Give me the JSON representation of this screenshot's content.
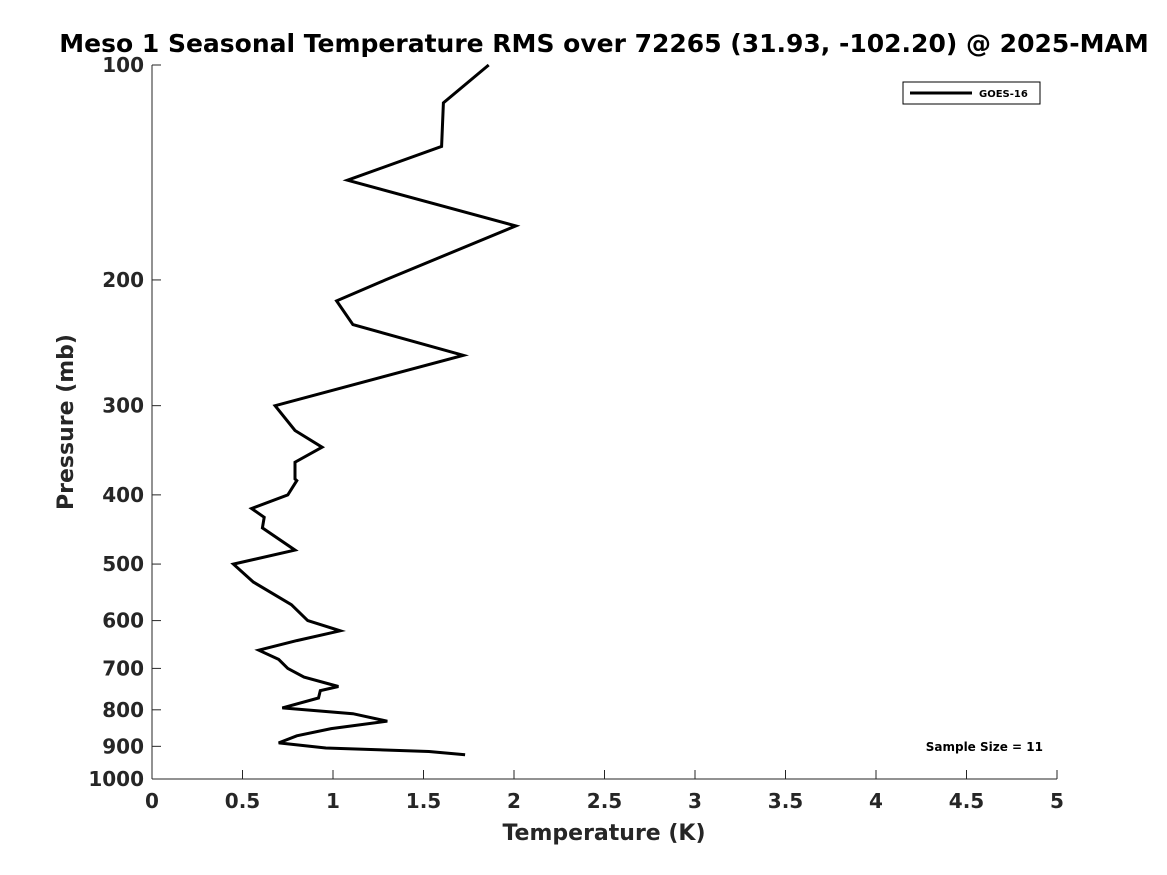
{
  "chart_data": {
    "type": "line",
    "title": "Meso 1 Seasonal Temperature RMS over 72265 (31.93, -102.20) @ 2025-MAM",
    "xlabel": "Temperature (K)",
    "ylabel": "Pressure (mb)",
    "xlim": [
      0,
      5
    ],
    "ylim": [
      100,
      1000
    ],
    "y_scale": "log",
    "y_reversed": true,
    "x_ticks": [
      "0",
      "0.5",
      "1",
      "1.5",
      "2",
      "2.5",
      "3",
      "3.5",
      "4",
      "4.5",
      "5"
    ],
    "y_ticks": [
      "100",
      "200",
      "300",
      "400",
      "500",
      "600",
      "700",
      "800",
      "900",
      "1000"
    ],
    "grid": false,
    "legend_placement": "top-right",
    "annotation": "Sample Size = 11",
    "series": [
      {
        "name": "GOES-16",
        "color": "#000000",
        "x": [
          1.86,
          1.61,
          1.6,
          1.08,
          2.01,
          1.29,
          1.02,
          1.11,
          1.72,
          0.68,
          0.79,
          0.94,
          0.79,
          0.79,
          0.8,
          0.75,
          0.55,
          0.62,
          0.61,
          0.79,
          0.45,
          0.56,
          0.77,
          0.86,
          1.04,
          0.8,
          0.59,
          0.7,
          0.75,
          0.84,
          1.03,
          0.93,
          0.92,
          0.72,
          1.11,
          1.3,
          0.99,
          0.8,
          0.7,
          0.96,
          1.53,
          1.73
        ],
        "y": [
          100,
          113,
          130,
          145,
          168,
          200,
          214,
          231,
          255,
          300,
          325,
          343,
          360,
          380,
          382,
          400,
          418,
          430,
          445,
          478,
          500,
          530,
          570,
          600,
          620,
          640,
          660,
          680,
          700,
          720,
          742,
          752,
          770,
          795,
          810,
          830,
          850,
          870,
          890,
          905,
          915,
          925
        ]
      }
    ]
  }
}
